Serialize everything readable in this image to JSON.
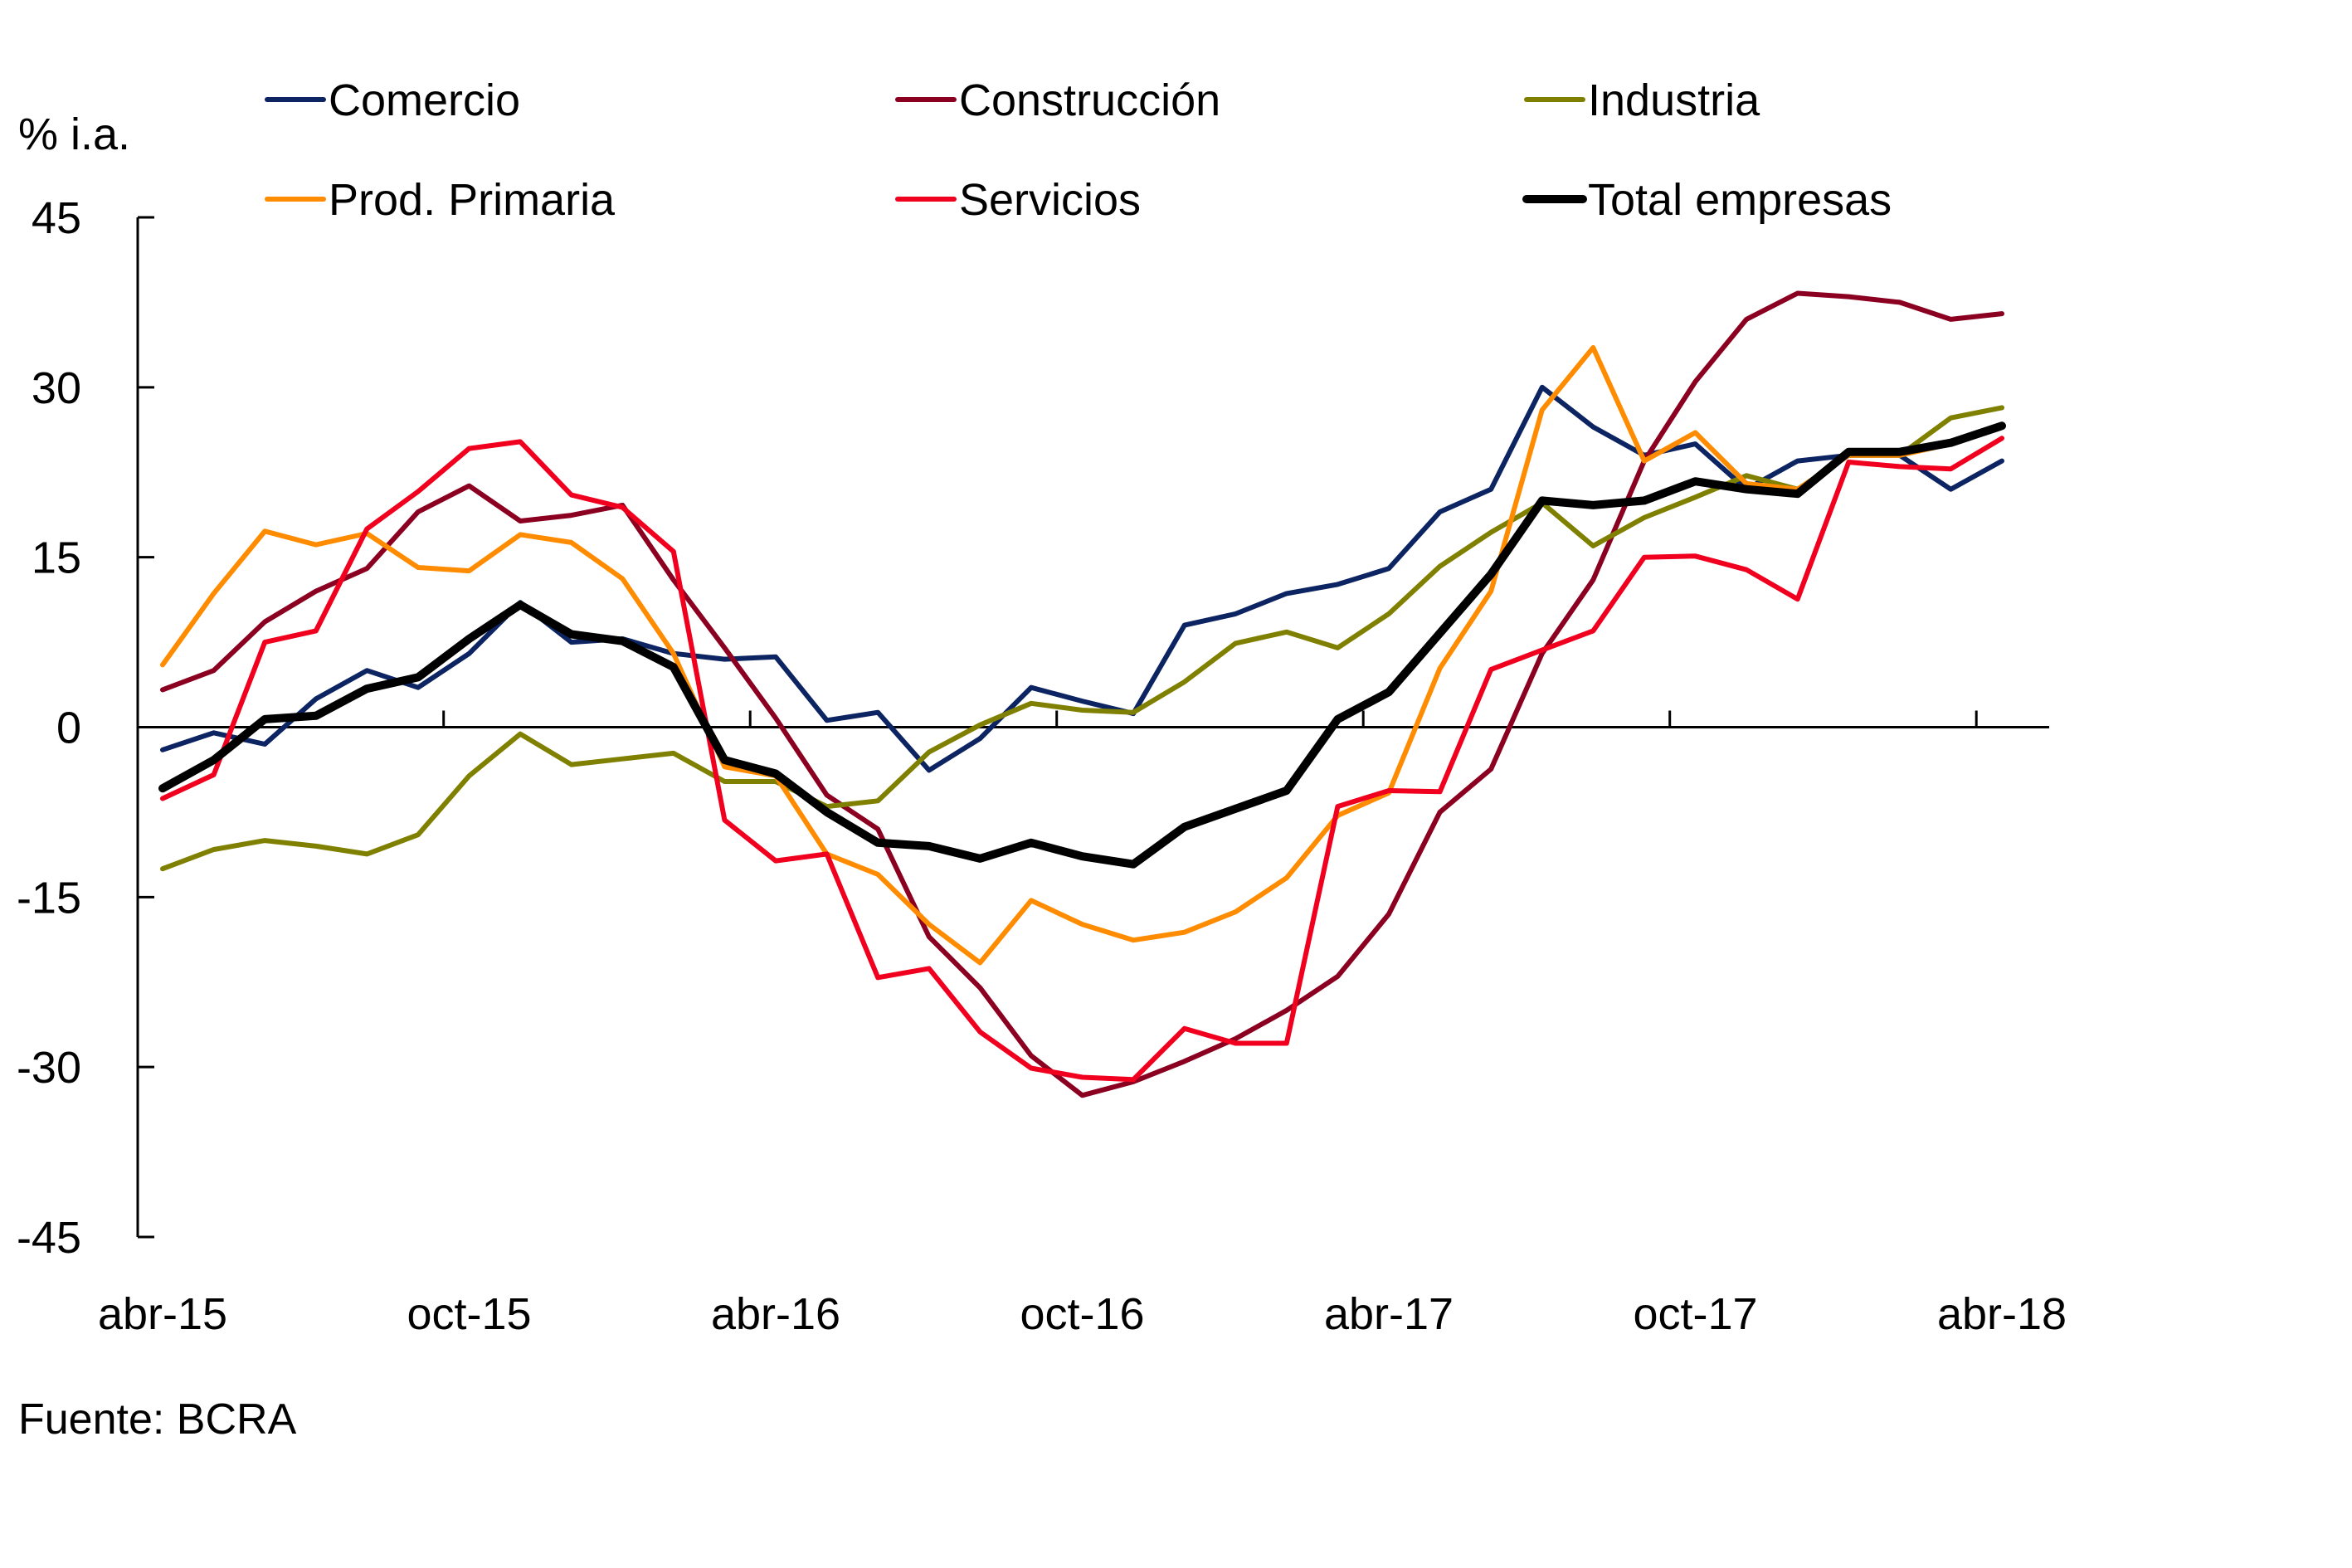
{
  "chart_data": {
    "type": "line",
    "title": "",
    "xlabel": "",
    "ylabel": "% i.a.",
    "ylim": [
      -45,
      45
    ],
    "yticks": [
      45,
      30,
      15,
      0,
      -15,
      -30,
      -45
    ],
    "ytick_labels": [
      "45",
      "30",
      "15",
      "0",
      "-15",
      "-30",
      "-45"
    ],
    "grid": false,
    "legend_position": "top",
    "x": [
      "abr-15",
      "may-15",
      "jun-15",
      "jul-15",
      "ago-15",
      "sep-15",
      "oct-15",
      "nov-15",
      "dic-15",
      "ene-16",
      "feb-16",
      "mar-16",
      "abr-16",
      "may-16",
      "jun-16",
      "jul-16",
      "ago-16",
      "sep-16",
      "oct-16",
      "nov-16",
      "dic-16",
      "ene-17",
      "feb-17",
      "mar-17",
      "abr-17",
      "may-17",
      "jun-17",
      "jul-17",
      "ago-17",
      "sep-17",
      "oct-17",
      "nov-17",
      "dic-17",
      "ene-18",
      "feb-18",
      "mar-18",
      "abr-18"
    ],
    "xtick_labels": [
      {
        "label": "abr-15",
        "index": 0
      },
      {
        "label": "oct-15",
        "index": 6
      },
      {
        "label": "abr-16",
        "index": 12
      },
      {
        "label": "oct-16",
        "index": 18
      },
      {
        "label": "abr-17",
        "index": 24
      },
      {
        "label": "oct-17",
        "index": 30
      },
      {
        "label": "abr-18",
        "index": 36
      }
    ],
    "series": [
      {
        "name": "Comercio",
        "color": "#0c2461",
        "values": [
          -2,
          -0.5,
          -1.5,
          2.5,
          5,
          3.5,
          6.5,
          11,
          7.5,
          7.8,
          6.5,
          6,
          6.2,
          0.6,
          1.3,
          -3.8,
          -1,
          3.5,
          2.3,
          1.2,
          9,
          10,
          11.8,
          12.6,
          14,
          19,
          21,
          30,
          26.5,
          24,
          25,
          21,
          23.5,
          24,
          24,
          21,
          23.5
        ]
      },
      {
        "name": "Construcción",
        "color": "#8b0020",
        "values": [
          3.3,
          5,
          9.3,
          12,
          14,
          19,
          21.3,
          18.2,
          18.7,
          19.6,
          13,
          7,
          0.8,
          -6,
          -9,
          -18.5,
          -23,
          -29,
          -32.5,
          -31.3,
          -29.5,
          -27.5,
          -25,
          -22,
          -16.5,
          -7.5,
          -3.7,
          6.5,
          13,
          23.5,
          30.5,
          36,
          38.3,
          38,
          37.5,
          36,
          36.5
        ]
      },
      {
        "name": "Industria",
        "color": "#808000",
        "values": [
          -12.5,
          -10.8,
          -10,
          -10.5,
          -11.2,
          -9.5,
          -4.3,
          -0.6,
          -3.3,
          -2.8,
          -2.3,
          -4.8,
          -4.8,
          -7,
          -6.5,
          -2.2,
          0.2,
          2.1,
          1.5,
          1.3,
          4,
          7.4,
          8.4,
          7,
          10,
          14.2,
          17.2,
          19.8,
          16,
          18.5,
          20.3,
          22.2,
          21,
          24,
          24,
          27.3,
          28.2
        ]
      },
      {
        "name": "Prod. Primaria",
        "color": "#ff8c00",
        "values": [
          5.5,
          11.8,
          17.3,
          16.1,
          17.1,
          14.1,
          13.8,
          17,
          16.3,
          13.1,
          6.5,
          -3.5,
          -4.3,
          -11.2,
          -13,
          -17.4,
          -20.8,
          -15.3,
          -17.4,
          -18.8,
          -18.1,
          -16.3,
          -13.3,
          -7.8,
          -5.8,
          5.2,
          12,
          28,
          33.5,
          23.5,
          26,
          21.5,
          21,
          24,
          24,
          25,
          26.5
        ]
      },
      {
        "name": "Servicios",
        "color": "#f0001e",
        "values": [
          -6.3,
          -4.2,
          7.5,
          8.5,
          17.5,
          20.8,
          24.6,
          25.2,
          20.5,
          19.4,
          15.5,
          -8.2,
          -11.8,
          -11.2,
          -22.1,
          -21.3,
          -26.9,
          -30.1,
          -30.9,
          -31.1,
          -26.6,
          -27.9,
          -27.9,
          -7,
          -5.6,
          -5.7,
          5.1,
          6.8,
          8.5,
          15,
          15.1,
          13.9,
          11.3,
          23.4,
          23,
          22.8,
          25.5
        ]
      },
      {
        "name": "Total empresas",
        "color": "#000000",
        "bold": true,
        "values": [
          -5.4,
          -2.9,
          0.7,
          1,
          3.4,
          4.4,
          7.8,
          10.8,
          8.2,
          7.6,
          5.3,
          -2.9,
          -4.1,
          -7.5,
          -10.2,
          -10.5,
          -11.6,
          -10.2,
          -11.4,
          -12.1,
          -8.8,
          -7.2,
          -5.6,
          0.7,
          3.1,
          8.3,
          13.5,
          20,
          19.6,
          20,
          21.7,
          21,
          20.6,
          24.3,
          24.3,
          25.1,
          26.6
        ]
      }
    ],
    "annotations": [
      "Fuente: BCRA"
    ]
  },
  "labels": {
    "unit": "% i.a.",
    "source": "Fuente: BCRA"
  }
}
